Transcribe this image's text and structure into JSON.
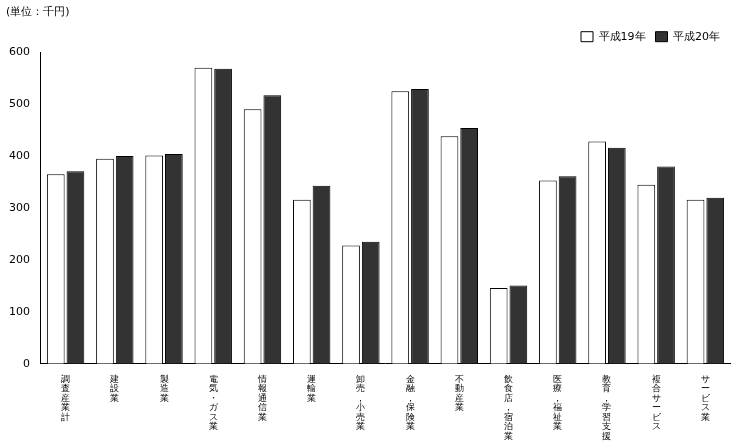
{
  "chart_data": {
    "type": "bar",
    "y_label": "(単位：千円)",
    "categories": [
      "調査産業計",
      "建設業",
      "製造業",
      "電気・ガス業",
      "情報通信業",
      "運輸業",
      "卸売，小売業",
      "金融，保険業",
      "不動産業",
      "飲食店，宿泊業",
      "医療，福祉業",
      "教育，学習支援",
      "複合サービス",
      "サービス業"
    ],
    "series": [
      {
        "name": "平成19年",
        "color": "#ffffff",
        "values": [
          365,
          395,
          401,
          570,
          490,
          316,
          228,
          525,
          438,
          146,
          353,
          428,
          345,
          316
        ]
      },
      {
        "name": "平成20年",
        "color": "#333333",
        "values": [
          371,
          400,
          404,
          568,
          517,
          343,
          235,
          529,
          454,
          151,
          361,
          416,
          380,
          320
        ]
      }
    ],
    "ylim": [
      0,
      600
    ],
    "yticks": [
      0,
      100,
      200,
      300,
      400,
      500,
      600
    ],
    "grid": false,
    "legend": "upper right"
  }
}
